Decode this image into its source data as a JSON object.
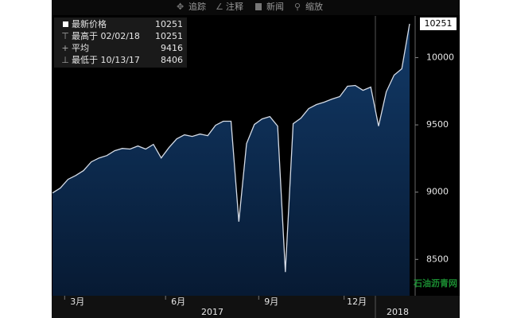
{
  "toolbar": [
    "追踪",
    "注释",
    "新闻",
    "缩放"
  ],
  "chart_data": {
    "type": "area",
    "categories": [
      null,
      null,
      null,
      "3月",
      null,
      null,
      null,
      null,
      null,
      null,
      null,
      null,
      null,
      null,
      null,
      null,
      "6月",
      null,
      null,
      null,
      null,
      null,
      null,
      null,
      null,
      null,
      null,
      null,
      "9月",
      null,
      null,
      null,
      null,
      null,
      null,
      null,
      null,
      null,
      null,
      "12月",
      null,
      null,
      null,
      null,
      null,
      null,
      null
    ],
    "values": [
      8994,
      9030,
      9095,
      9124,
      9160,
      9225,
      9254,
      9272,
      9308,
      9325,
      9320,
      9343,
      9320,
      9355,
      9254,
      9331,
      9396,
      9426,
      9414,
      9432,
      9420,
      9497,
      9527,
      9527,
      8781,
      9361,
      9503,
      9544,
      9562,
      9491,
      8406,
      9509,
      9550,
      9621,
      9651,
      9669,
      9692,
      9710,
      9787,
      9793,
      9757,
      9781,
      9491,
      9746,
      9870,
      9917,
      10251
    ],
    "years": [
      "2017",
      "2018"
    ],
    "color": "#d4dbe6",
    "fill": "#0c2a4e",
    "ylim": [
      8230,
      10310
    ],
    "yticks": [
      8500,
      9000,
      9500,
      10000
    ],
    "last_value": 10251,
    "legend": [
      {
        "label": "最新价格",
        "value": 10251
      },
      {
        "label": "最高于 02/02/18",
        "value": 10251
      },
      {
        "label": "平均",
        "value": 9416
      },
      {
        "label": "最低于 10/13/17",
        "value": 8406
      }
    ],
    "watermark": "石油沥青网"
  }
}
